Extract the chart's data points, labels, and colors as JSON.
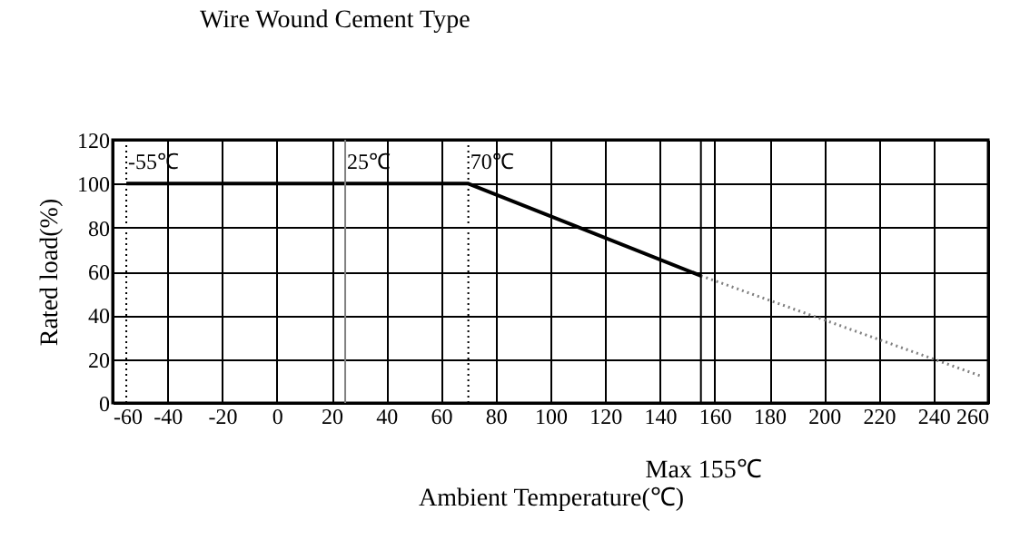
{
  "chart_data": {
    "type": "line",
    "title": "Wire Wound Cement Type",
    "xlabel": "Ambient Temperature(℃)",
    "ylabel": "Rated load(%)",
    "series": [
      {
        "color": "#000000",
        "line_style": "solid",
        "x": [
          -55,
          70,
          155
        ],
        "values": [
          100,
          100,
          58
        ]
      },
      {
        "color": "#808080",
        "line_style": "dotted",
        "x": [
          155,
          240,
          258
        ],
        "values": [
          58,
          20,
          12
        ]
      }
    ],
    "xlim": [
      -60,
      260
    ],
    "xticks": [
      -60,
      -40,
      -20,
      0,
      20,
      40,
      60,
      80,
      100,
      120,
      140,
      160,
      180,
      200,
      220,
      240,
      260
    ],
    "ylim": [
      0,
      120
    ],
    "yticks": [
      0,
      20,
      40,
      60,
      80,
      100,
      120
    ],
    "ref_lines": [
      {
        "axis": "x",
        "value": -55,
        "label": "-55℃",
        "line_style": "dotted",
        "color": "#000000"
      },
      {
        "axis": "x",
        "value": 25,
        "label": "25℃",
        "line_style": "solid",
        "color": "#808080"
      },
      {
        "axis": "x",
        "value": 70,
        "label": "70℃",
        "line_style": "dotted",
        "color": "#000000"
      },
      {
        "axis": "x",
        "value": 155,
        "label": null,
        "line_style": "solid",
        "color": "#000000"
      }
    ],
    "annotations": [
      "Max 155℃"
    ],
    "grid": true,
    "marker": "none"
  }
}
